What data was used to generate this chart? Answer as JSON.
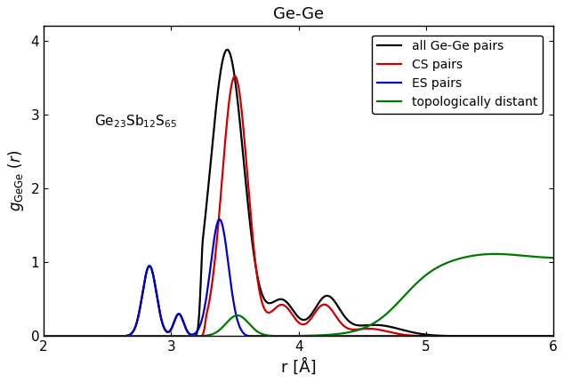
{
  "title": "Ge-Ge",
  "xlabel": "r [Å]",
  "xlim": [
    2,
    6
  ],
  "ylim": [
    0,
    4.2
  ],
  "yticks": [
    0,
    1,
    2,
    3,
    4
  ],
  "xticks": [
    2,
    3,
    4,
    5,
    6
  ],
  "annotation": "Ge$_{23}$Sb$_{12}$S$_{65}$",
  "legend_labels": [
    "all Ge-Ge pairs",
    "CS pairs",
    "ES pairs",
    "topologically distant"
  ],
  "colors": {
    "all": "#000000",
    "cs": "#cc0000",
    "es": "#0000cc",
    "td": "#007700"
  },
  "background_color": "#ffffff"
}
